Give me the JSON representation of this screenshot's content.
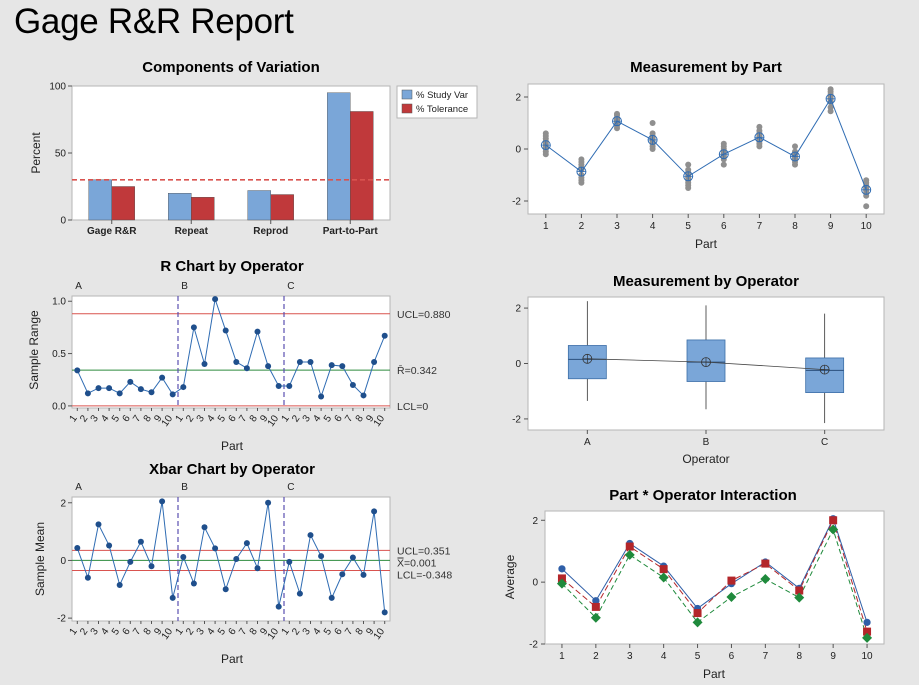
{
  "report": {
    "title": "Gage R&R Report"
  },
  "colors": {
    "blue": "#7aa6d8",
    "red": "#c0393b",
    "line_blue": "#2f6cb3",
    "dot_dark": "#1f4f8c",
    "ref_red": "#d9534f",
    "ref_green": "#2e8b3e",
    "green": "#1f8a3c",
    "gray": "#8f8f8f",
    "divider": "#5b4fb0"
  },
  "chart_data": [
    {
      "id": "components",
      "type": "bar",
      "title": "Components of Variation",
      "ylabel": "Percent",
      "ylim": [
        0,
        100
      ],
      "yticks": [
        0,
        50,
        100
      ],
      "categories": [
        "Gage R&R",
        "Repeat",
        "Reprod",
        "Part-to-Part"
      ],
      "series": [
        {
          "name": "% Study Var",
          "values": [
            30,
            20,
            22,
            95
          ]
        },
        {
          "name": "% Tolerance",
          "values": [
            25,
            17,
            19,
            81
          ]
        }
      ],
      "reference_line": 30
    },
    {
      "id": "r_chart",
      "type": "line",
      "title": "R Chart by Operator",
      "xlabel": "Part",
      "ylabel": "Sample Range",
      "ylim": [
        -0.02,
        1.05
      ],
      "yticks": [
        "0.0",
        "0.5",
        "1.0"
      ],
      "groups": [
        "A",
        "B",
        "C"
      ],
      "x_tick_labels": [
        "1",
        "2",
        "3",
        "4",
        "5",
        "6",
        "7",
        "8",
        "9",
        "10"
      ],
      "values": [
        0.34,
        0.12,
        0.17,
        0.17,
        0.12,
        0.23,
        0.16,
        0.13,
        0.27,
        0.11,
        0.18,
        0.75,
        0.4,
        1.02,
        0.72,
        0.42,
        0.36,
        0.71,
        0.38,
        0.19,
        0.19,
        0.42,
        0.42,
        0.09,
        0.39,
        0.38,
        0.2,
        0.1,
        0.42,
        0.67
      ],
      "ucl": 0.88,
      "center": 0.342,
      "lcl": 0,
      "ucl_label": "UCL=0.880",
      "center_label": "R̄=0.342",
      "lcl_label": "LCL=0"
    },
    {
      "id": "xbar_chart",
      "type": "line",
      "title": "Xbar Chart by Operator",
      "xlabel": "Part",
      "ylabel": "Sample Mean",
      "ylim": [
        -2.1,
        2.2
      ],
      "yticks": [
        "-2",
        "0",
        "2"
      ],
      "groups": [
        "A",
        "B",
        "C"
      ],
      "x_tick_labels": [
        "1",
        "2",
        "3",
        "4",
        "5",
        "6",
        "7",
        "8",
        "9",
        "10"
      ],
      "values": [
        0.43,
        -0.6,
        1.25,
        0.52,
        -0.85,
        -0.05,
        0.65,
        -0.2,
        2.05,
        -1.3,
        0.12,
        -0.8,
        1.15,
        0.42,
        -1.0,
        0.05,
        0.6,
        -0.27,
        2.0,
        -1.6,
        -0.05,
        -1.15,
        0.88,
        0.15,
        -1.3,
        -0.48,
        0.1,
        -0.5,
        1.7,
        -1.8
      ],
      "ucl": 0.351,
      "center": 0.001,
      "lcl": -0.348,
      "ucl_label": "UCL=0.351",
      "center_label": "X̿=0.001",
      "lcl_label": "LCL=-0.348"
    },
    {
      "id": "by_part",
      "type": "scatter",
      "title": "Measurement by Part",
      "xlabel": "Part",
      "ylim": [
        -2.5,
        2.5
      ],
      "yticks": [
        "-2",
        "0",
        "2"
      ],
      "categories": [
        "1",
        "2",
        "3",
        "4",
        "5",
        "6",
        "7",
        "8",
        "9",
        "10"
      ],
      "means": [
        0.15,
        -0.87,
        1.07,
        0.35,
        -1.05,
        -0.2,
        0.45,
        -0.29,
        1.93,
        -1.57
      ],
      "observations": [
        [
          0.6,
          0.4,
          0.2,
          0.0,
          -0.1,
          0.3,
          -0.2,
          0.1,
          0.5
        ],
        [
          -0.4,
          -0.5,
          -0.7,
          -1.0,
          -1.2,
          -1.3,
          -0.8,
          -0.6,
          -1.1
        ],
        [
          1.35,
          1.2,
          1.0,
          0.8,
          1.1,
          1.3,
          0.9,
          1.05,
          1.15
        ],
        [
          1.0,
          0.6,
          0.3,
          0.1,
          0.2,
          0.4,
          0.5,
          0.0,
          0.35
        ],
        [
          -0.6,
          -0.8,
          -1.0,
          -1.3,
          -1.5,
          -0.9,
          -1.2,
          -1.1,
          -1.4
        ],
        [
          0.2,
          0.1,
          -0.1,
          -0.3,
          -0.6,
          -0.2,
          -0.4,
          0.0,
          -0.25
        ],
        [
          0.85,
          0.7,
          0.5,
          0.3,
          0.1,
          0.6,
          0.2,
          0.4,
          0.45
        ],
        [
          0.1,
          -0.1,
          -0.3,
          -0.5,
          -0.6,
          -0.4,
          -0.2,
          -0.35,
          -0.25
        ],
        [
          2.3,
          2.2,
          2.0,
          1.9,
          1.8,
          1.6,
          1.45,
          2.1,
          1.95
        ],
        [
          -1.2,
          -1.3,
          -1.5,
          -1.7,
          -1.8,
          -2.2,
          -1.4,
          -1.6,
          -1.55
        ]
      ]
    },
    {
      "id": "by_operator",
      "type": "box",
      "title": "Measurement by Operator",
      "xlabel": "Operator",
      "ylim": [
        -2.4,
        2.4
      ],
      "yticks": [
        "-2",
        "0",
        "2"
      ],
      "categories": [
        "A",
        "B",
        "C"
      ],
      "boxes": [
        {
          "min": -1.35,
          "q1": -0.55,
          "median": 0.15,
          "q3": 0.65,
          "max": 2.25,
          "mean": 0.17
        },
        {
          "min": -1.65,
          "q1": -0.65,
          "median": 0.05,
          "q3": 0.85,
          "max": 2.1,
          "mean": 0.05
        },
        {
          "min": -2.15,
          "q1": -1.05,
          "median": -0.25,
          "q3": 0.2,
          "max": 1.8,
          "mean": -0.22
        }
      ]
    },
    {
      "id": "interaction",
      "type": "line",
      "title": "Part * Operator Interaction",
      "xlabel": "Part",
      "ylabel": "Average",
      "ylim": [
        -2.0,
        2.3
      ],
      "yticks": [
        "-2",
        "0",
        "2"
      ],
      "categories": [
        "1",
        "2",
        "3",
        "4",
        "5",
        "6",
        "7",
        "8",
        "9",
        "10"
      ],
      "series": [
        {
          "marker": "circle",
          "values": [
            0.43,
            -0.6,
            1.25,
            0.52,
            -0.85,
            -0.05,
            0.65,
            -0.2,
            2.05,
            -1.3
          ]
        },
        {
          "marker": "square",
          "values": [
            0.12,
            -0.8,
            1.15,
            0.42,
            -1.0,
            0.05,
            0.6,
            -0.27,
            2.0,
            -1.6
          ]
        },
        {
          "marker": "diamond",
          "values": [
            -0.05,
            -1.15,
            0.88,
            0.15,
            -1.3,
            -0.48,
            0.1,
            -0.5,
            1.7,
            -1.8
          ]
        }
      ]
    }
  ]
}
